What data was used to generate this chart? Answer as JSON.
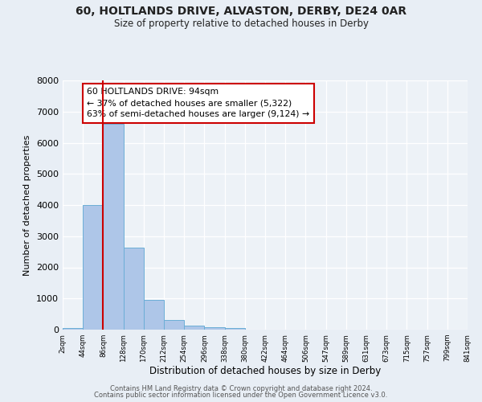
{
  "title_line1": "60, HOLTLANDS DRIVE, ALVASTON, DERBY, DE24 0AR",
  "title_line2": "Size of property relative to detached houses in Derby",
  "xlabel": "Distribution of detached houses by size in Derby",
  "ylabel": "Number of detached properties",
  "bin_labels": [
    "2sqm",
    "44sqm",
    "86sqm",
    "128sqm",
    "170sqm",
    "212sqm",
    "254sqm",
    "296sqm",
    "338sqm",
    "380sqm",
    "422sqm",
    "464sqm",
    "506sqm",
    "547sqm",
    "589sqm",
    "631sqm",
    "673sqm",
    "715sqm",
    "757sqm",
    "799sqm",
    "841sqm"
  ],
  "bar_heights": [
    60,
    4000,
    6600,
    2620,
    960,
    320,
    130,
    80,
    60,
    0,
    0,
    0,
    0,
    0,
    0,
    0,
    0,
    0,
    0,
    0
  ],
  "bar_color": "#aec6e8",
  "bar_edge_color": "#6baed6",
  "vline_bin": 2,
  "vline_color": "#cc0000",
  "annotation_box_text": "60 HOLTLANDS DRIVE: 94sqm\n← 37% of detached houses are smaller (5,322)\n63% of semi-detached houses are larger (9,124) →",
  "ylim": [
    0,
    8000
  ],
  "yticks": [
    0,
    1000,
    2000,
    3000,
    4000,
    5000,
    6000,
    7000,
    8000
  ],
  "footer_line1": "Contains HM Land Registry data © Crown copyright and database right 2024.",
  "footer_line2": "Contains public sector information licensed under the Open Government Licence v3.0.",
  "bg_color": "#e8eef5",
  "plot_bg_color": "#edf2f7"
}
